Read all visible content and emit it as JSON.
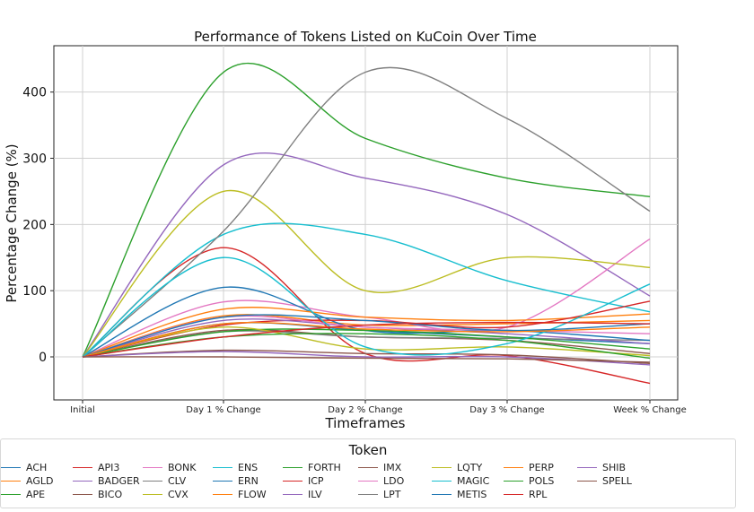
{
  "chart_data": {
    "type": "line",
    "title": "Performance of Tokens Listed on KuCoin Over Time",
    "xlabel": "Timeframes",
    "ylabel": "Percentage Change (%)",
    "categories": [
      "Initial",
      "Day 1 % Change",
      "Day 2 % Change",
      "Day 3 % Change",
      "Week % Change"
    ],
    "yticks": [
      0,
      100,
      200,
      300,
      400
    ],
    "ylim": [
      -65,
      470
    ],
    "grid": true,
    "legend_title": "Token",
    "legend_position": "bottom",
    "series": [
      {
        "name": "ACH",
        "color": "#1f77b4",
        "values": [
          0,
          50,
          40,
          30,
          20
        ]
      },
      {
        "name": "AGLD",
        "color": "#ff7f0e",
        "values": [
          0,
          62,
          48,
          50,
          55
        ]
      },
      {
        "name": "APE",
        "color": "#2ca02c",
        "values": [
          0,
          430,
          330,
          270,
          242
        ]
      },
      {
        "name": "API3",
        "color": "#d62728",
        "values": [
          0,
          165,
          5,
          2,
          -40
        ]
      },
      {
        "name": "BADGER",
        "color": "#9467bd",
        "values": [
          0,
          290,
          270,
          215,
          92
        ]
      },
      {
        "name": "BICO",
        "color": "#8c564b",
        "values": [
          0,
          40,
          30,
          25,
          5
        ]
      },
      {
        "name": "BONK",
        "color": "#e377c2",
        "values": [
          0,
          83,
          60,
          45,
          178
        ]
      },
      {
        "name": "CLV",
        "color": "#7f7f7f",
        "values": [
          0,
          38,
          30,
          28,
          25
        ]
      },
      {
        "name": "CVX",
        "color": "#bcbd22",
        "values": [
          0,
          250,
          100,
          150,
          135
        ]
      },
      {
        "name": "ENS",
        "color": "#17becf",
        "values": [
          0,
          185,
          185,
          115,
          68
        ]
      },
      {
        "name": "ERN",
        "color": "#1f77b4",
        "values": [
          0,
          105,
          40,
          40,
          25
        ]
      },
      {
        "name": "FLOW",
        "color": "#ff7f0e",
        "values": [
          0,
          72,
          60,
          55,
          65
        ]
      },
      {
        "name": "FORTH",
        "color": "#2ca02c",
        "values": [
          0,
          38,
          40,
          30,
          12
        ]
      },
      {
        "name": "ICP",
        "color": "#d62728",
        "values": [
          0,
          48,
          55,
          45,
          84
        ]
      },
      {
        "name": "ILV",
        "color": "#9467bd",
        "values": [
          0,
          55,
          45,
          35,
          20
        ]
      },
      {
        "name": "IMX",
        "color": "#8c564b",
        "values": [
          0,
          10,
          5,
          3,
          -10
        ]
      },
      {
        "name": "LDO",
        "color": "#e377c2",
        "values": [
          0,
          60,
          45,
          40,
          35
        ]
      },
      {
        "name": "LPT",
        "color": "#7f7f7f",
        "values": [
          0,
          190,
          430,
          360,
          220
        ]
      },
      {
        "name": "LQTY",
        "color": "#bcbd22",
        "values": [
          0,
          45,
          12,
          15,
          2
        ]
      },
      {
        "name": "MAGIC",
        "color": "#17becf",
        "values": [
          0,
          150,
          15,
          20,
          110
        ]
      },
      {
        "name": "METIS",
        "color": "#1f77b4",
        "values": [
          0,
          60,
          55,
          40,
          50
        ]
      },
      {
        "name": "PERP",
        "color": "#ff7f0e",
        "values": [
          0,
          50,
          42,
          38,
          45
        ]
      },
      {
        "name": "POLS",
        "color": "#2ca02c",
        "values": [
          0,
          30,
          35,
          25,
          -2
        ]
      },
      {
        "name": "RPL",
        "color": "#d62728",
        "values": [
          0,
          30,
          48,
          52,
          50
        ]
      },
      {
        "name": "SHIB",
        "color": "#9467bd",
        "values": [
          0,
          8,
          0,
          0,
          -12
        ]
      },
      {
        "name": "SPELL",
        "color": "#8c564b",
        "values": [
          0,
          0,
          -2,
          -3,
          -8
        ]
      }
    ]
  }
}
